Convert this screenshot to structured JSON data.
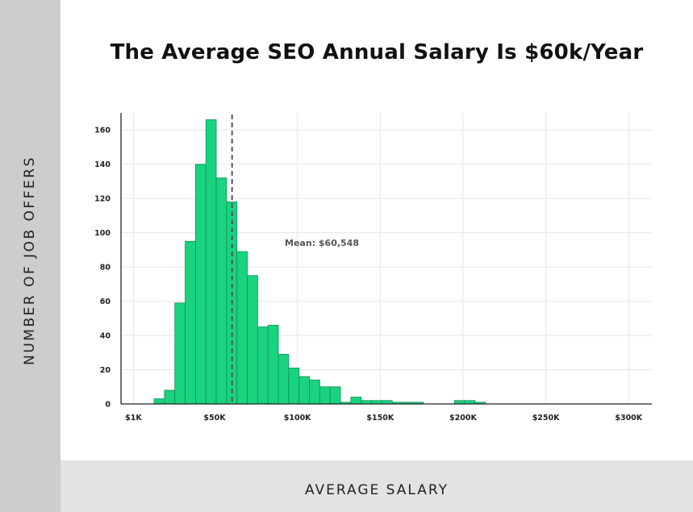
{
  "chart_data": {
    "type": "bar",
    "title": "The Average SEO Annual Salary Is $60k/Year",
    "xlabel": "AVERAGE SALARY",
    "ylabel": "NUMBER OF JOB OFFERS",
    "x_tick_labels": [
      "$1K",
      "$50K",
      "$100K",
      "$150K",
      "$200K",
      "$250K",
      "$300K"
    ],
    "x_tick_values": [
      1000,
      50000,
      100000,
      150000,
      200000,
      250000,
      300000
    ],
    "y_ticks": [
      0,
      20,
      40,
      60,
      80,
      100,
      120,
      140,
      160
    ],
    "xlim": [
      -6500,
      314000
    ],
    "ylim": [
      0,
      170
    ],
    "bin_width": 6250,
    "bins_start": [
      13500,
      19750,
      26000,
      32250,
      38500,
      44750,
      51000,
      57250,
      63500,
      69750,
      76000,
      82250,
      88500,
      94750,
      101000,
      107250,
      113500,
      119750,
      126000,
      132250,
      138500,
      144750,
      151000,
      157250,
      163500,
      169750,
      176000,
      182250,
      188500,
      194750,
      201000,
      207250
    ],
    "values": [
      3,
      8,
      59,
      95,
      140,
      166,
      132,
      118,
      89,
      75,
      45,
      46,
      29,
      21,
      16,
      14,
      10,
      10,
      1,
      4,
      2,
      2,
      2,
      1,
      1,
      1,
      0,
      0,
      0,
      2,
      2,
      1
    ],
    "mean": 60548,
    "mean_label": "Mean: $60,548",
    "grid": true,
    "bar_color": "#19d37f",
    "bar_edge_color": "#0e8f55",
    "mean_line_color": "#555555"
  }
}
